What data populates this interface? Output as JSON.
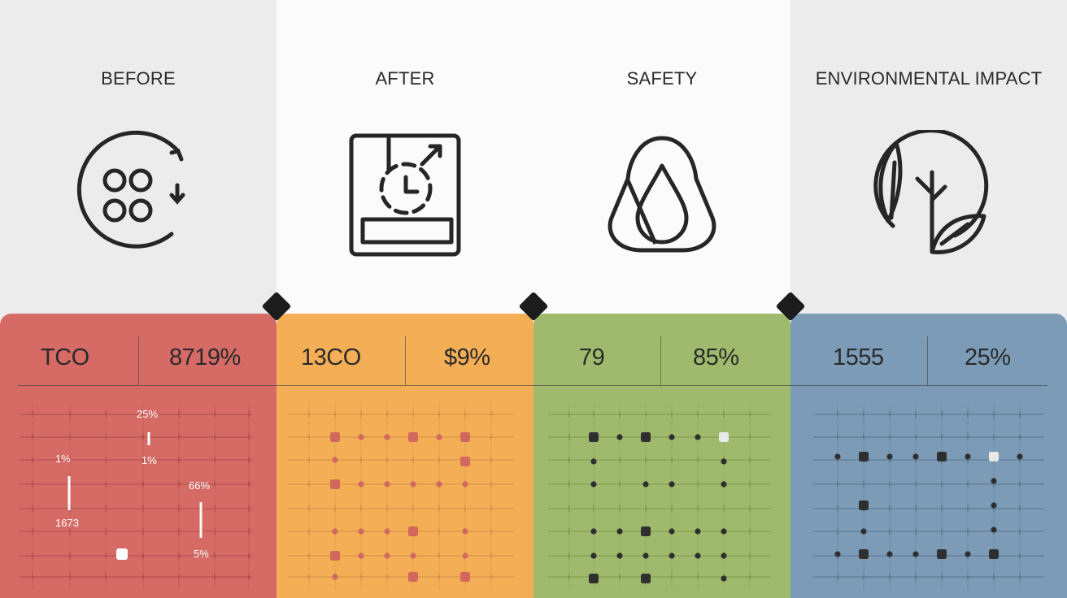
{
  "columns": [
    {
      "heading": "BEFORE",
      "icon": "circular-arrow-dots-icon",
      "metric_left": "TCO",
      "metric_right": "8719%",
      "panel_color": "#d66b66"
    },
    {
      "heading": "AFTER",
      "icon": "clock-exchange-icon",
      "metric_left": "13CO",
      "metric_right": "$9%",
      "panel_color": "#f4ae56"
    },
    {
      "heading": "SAFETY",
      "icon": "drop-shield-icon",
      "metric_left": "79",
      "metric_right": "85%",
      "panel_color": "#9fba6c"
    },
    {
      "heading": "ENVIRONMENTAL IMPACT",
      "icon": "leaf-tree-icon",
      "metric_left": "1555",
      "metric_right": "25%",
      "panel_color": "#7b9bb7"
    }
  ],
  "before_labels": [
    "25%",
    "1%",
    "1%",
    "66%",
    "1673",
    "5%"
  ]
}
